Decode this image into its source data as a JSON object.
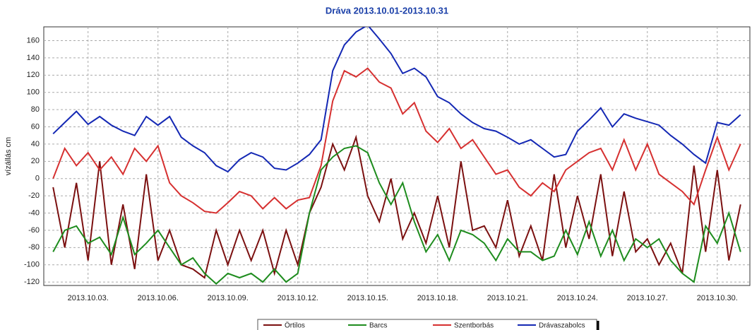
{
  "chart_data": {
    "type": "line",
    "title": "Dráva 2013.10.01-2013.10.31",
    "ylabel": "vízállás cm",
    "xlim": [
      1.1,
      31.4
    ],
    "ylim": [
      -124,
      176
    ],
    "xticks": [
      {
        "value": 3,
        "label": "2013.10.03."
      },
      {
        "value": 6,
        "label": "2013.10.06."
      },
      {
        "value": 9,
        "label": "2013.10.09."
      },
      {
        "value": 12,
        "label": "2013.10.12."
      },
      {
        "value": 15,
        "label": "2013.10.15."
      },
      {
        "value": 18,
        "label": "2013.10.18."
      },
      {
        "value": 21,
        "label": "2013.10.21."
      },
      {
        "value": 24,
        "label": "2013.10.24."
      },
      {
        "value": 27,
        "label": "2013.10.27."
      },
      {
        "value": 30,
        "label": "2013.10.30."
      }
    ],
    "yticks": [
      -120,
      -100,
      -80,
      -60,
      -40,
      -20,
      0,
      20,
      40,
      60,
      80,
      100,
      120,
      140,
      160
    ],
    "grid": true,
    "legend": "bottom",
    "x": [
      1.5,
      2,
      2.5,
      3,
      3.5,
      4,
      4.5,
      5,
      5.5,
      6,
      6.5,
      7,
      7.5,
      8,
      8.5,
      9,
      9.5,
      10,
      10.5,
      11,
      11.5,
      12,
      12.5,
      13,
      13.5,
      14,
      14.5,
      15,
      15.5,
      16,
      16.5,
      17,
      17.5,
      18,
      18.5,
      19,
      19.5,
      20,
      20.5,
      21,
      21.5,
      22,
      22.5,
      23,
      23.5,
      24,
      24.5,
      25,
      25.5,
      26,
      26.5,
      27,
      27.5,
      28,
      28.5,
      29,
      29.5,
      30,
      30.5,
      31
    ],
    "series": [
      {
        "name": "Örtilos",
        "color": "#7b1010",
        "values": [
          -10,
          -80,
          -5,
          -95,
          20,
          -100,
          -30,
          -105,
          5,
          -95,
          -60,
          -100,
          -105,
          -115,
          -60,
          -100,
          -60,
          -95,
          -60,
          -110,
          -60,
          -100,
          -40,
          -10,
          40,
          10,
          48,
          -20,
          -50,
          0,
          -70,
          -40,
          -75,
          -20,
          -80,
          20,
          -60,
          -55,
          -80,
          -25,
          -90,
          -55,
          -95,
          5,
          -80,
          -20,
          -70,
          5,
          -90,
          -15,
          -85,
          -70,
          -100,
          -75,
          -110,
          15,
          -85,
          10,
          -95,
          -30
        ]
      },
      {
        "name": "Barcs",
        "color": "#1e8c1e",
        "values": [
          -85,
          -60,
          -55,
          -75,
          -68,
          -88,
          -45,
          -88,
          -75,
          -60,
          -80,
          -100,
          -92,
          -110,
          -122,
          -110,
          -115,
          -110,
          -120,
          -105,
          -120,
          -110,
          -40,
          10,
          25,
          35,
          38,
          30,
          -5,
          -30,
          -5,
          -50,
          -85,
          -65,
          -95,
          -60,
          -65,
          -75,
          -95,
          -70,
          -85,
          -85,
          -95,
          -90,
          -60,
          -88,
          -50,
          -90,
          -60,
          -95,
          -70,
          -80,
          -70,
          -95,
          -110,
          -120,
          -55,
          -75,
          -40,
          -85
        ]
      },
      {
        "name": "Szentborbás",
        "color": "#d63030",
        "values": [
          0,
          35,
          15,
          30,
          10,
          25,
          5,
          35,
          20,
          38,
          -5,
          -20,
          -28,
          -38,
          -40,
          -28,
          -15,
          -20,
          -35,
          -22,
          -35,
          -25,
          -22,
          15,
          90,
          125,
          118,
          128,
          112,
          105,
          75,
          88,
          55,
          42,
          58,
          35,
          45,
          25,
          5,
          10,
          -10,
          -20,
          -5,
          -15,
          10,
          20,
          30,
          35,
          10,
          45,
          10,
          40,
          5,
          -5,
          -15,
          -30,
          10,
          48,
          10,
          40
        ]
      },
      {
        "name": "Drávaszabolcs",
        "color": "#1428b4",
        "values": [
          52,
          65,
          78,
          63,
          72,
          62,
          55,
          50,
          72,
          62,
          72,
          48,
          38,
          30,
          15,
          8,
          22,
          30,
          25,
          12,
          10,
          18,
          28,
          45,
          125,
          155,
          170,
          178,
          162,
          145,
          122,
          128,
          118,
          95,
          88,
          75,
          65,
          58,
          55,
          48,
          40,
          45,
          35,
          25,
          28,
          55,
          68,
          82,
          60,
          75,
          70,
          66,
          62,
          50,
          40,
          28,
          18,
          65,
          62,
          74
        ]
      }
    ]
  }
}
